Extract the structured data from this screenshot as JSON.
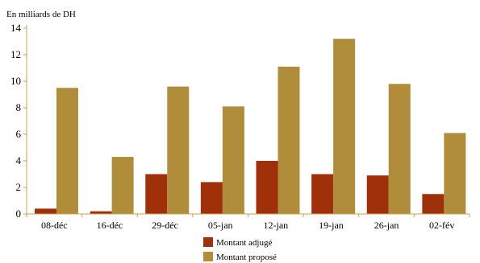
{
  "chart_data": {
    "type": "bar",
    "ylabel": "En milliards de DH",
    "categories": [
      "08-déc",
      "16-déc",
      "29-déc",
      "05-jan",
      "12-jan",
      "19-jan",
      "26-jan",
      "02-fév"
    ],
    "series": [
      {
        "name": "Montant adjugé",
        "color": "#a0300a",
        "values": [
          0.4,
          0.2,
          3.0,
          2.4,
          4.0,
          3.0,
          2.9,
          1.5
        ]
      },
      {
        "name": "Montant proposé",
        "color": "#b08d3a",
        "values": [
          9.5,
          4.3,
          9.6,
          8.1,
          11.1,
          13.2,
          9.8,
          6.1
        ]
      }
    ],
    "ylim": [
      0,
      14
    ],
    "yticks": [
      0,
      2,
      4,
      6,
      8,
      10,
      12,
      14
    ],
    "grid": false,
    "legend": "bottom-center",
    "axis_color": "#c8a24a"
  }
}
